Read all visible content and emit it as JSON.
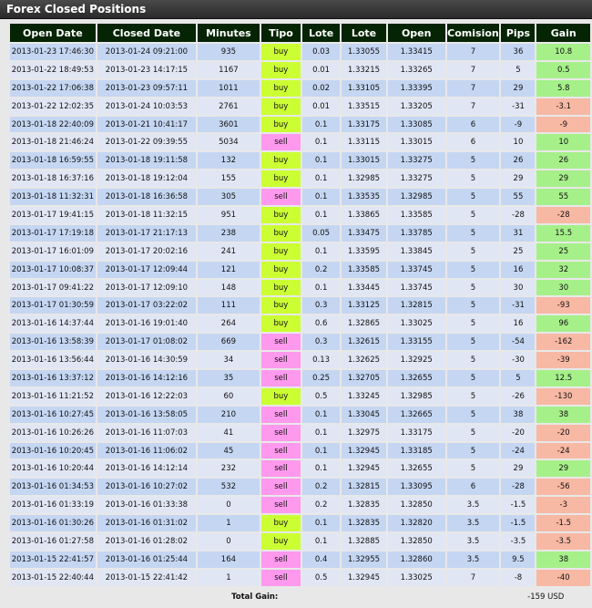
{
  "window": {
    "title": "Forex Closed Positions"
  },
  "columns": [
    "Open Date",
    "Closed Date",
    "Minutes",
    "Tipo",
    "Lote",
    "Lote",
    "Open",
    "Comision",
    "Pips",
    "Gain"
  ],
  "rows": [
    {
      "open_date": "2013-01-23 17:46:30",
      "closed_date": "2013-01-24 09:21:00",
      "minutes": "935",
      "tipo": "buy",
      "lote": "0.03",
      "lote2": "1.33055",
      "open": "1.33415",
      "comision": "7",
      "pips": "36",
      "gain": "10.8"
    },
    {
      "open_date": "2013-01-22 18:49:53",
      "closed_date": "2013-01-23 14:17:15",
      "minutes": "1167",
      "tipo": "buy",
      "lote": "0.01",
      "lote2": "1.33215",
      "open": "1.33265",
      "comision": "7",
      "pips": "5",
      "gain": "0.5"
    },
    {
      "open_date": "2013-01-22 17:06:38",
      "closed_date": "2013-01-23 09:57:11",
      "minutes": "1011",
      "tipo": "buy",
      "lote": "0.02",
      "lote2": "1.33105",
      "open": "1.33395",
      "comision": "7",
      "pips": "29",
      "gain": "5.8"
    },
    {
      "open_date": "2013-01-22 12:02:35",
      "closed_date": "2013-01-24 10:03:53",
      "minutes": "2761",
      "tipo": "buy",
      "lote": "0.01",
      "lote2": "1.33515",
      "open": "1.33205",
      "comision": "7",
      "pips": "-31",
      "gain": "-3.1"
    },
    {
      "open_date": "2013-01-18 22:40:09",
      "closed_date": "2013-01-21 10:41:17",
      "minutes": "3601",
      "tipo": "buy",
      "lote": "0.1",
      "lote2": "1.33175",
      "open": "1.33085",
      "comision": "6",
      "pips": "-9",
      "gain": "-9"
    },
    {
      "open_date": "2013-01-18 21:46:24",
      "closed_date": "2013-01-22 09:39:55",
      "minutes": "5034",
      "tipo": "sell",
      "lote": "0.1",
      "lote2": "1.33115",
      "open": "1.33015",
      "comision": "6",
      "pips": "10",
      "gain": "10"
    },
    {
      "open_date": "2013-01-18 16:59:55",
      "closed_date": "2013-01-18 19:11:58",
      "minutes": "132",
      "tipo": "buy",
      "lote": "0.1",
      "lote2": "1.33015",
      "open": "1.33275",
      "comision": "5",
      "pips": "26",
      "gain": "26"
    },
    {
      "open_date": "2013-01-18 16:37:16",
      "closed_date": "2013-01-18 19:12:04",
      "minutes": "155",
      "tipo": "buy",
      "lote": "0.1",
      "lote2": "1.32985",
      "open": "1.33275",
      "comision": "5",
      "pips": "29",
      "gain": "29"
    },
    {
      "open_date": "2013-01-18 11:32:31",
      "closed_date": "2013-01-18 16:36:58",
      "minutes": "305",
      "tipo": "sell",
      "lote": "0.1",
      "lote2": "1.33535",
      "open": "1.32985",
      "comision": "5",
      "pips": "55",
      "gain": "55"
    },
    {
      "open_date": "2013-01-17 19:41:15",
      "closed_date": "2013-01-18 11:32:15",
      "minutes": "951",
      "tipo": "buy",
      "lote": "0.1",
      "lote2": "1.33865",
      "open": "1.33585",
      "comision": "5",
      "pips": "-28",
      "gain": "-28"
    },
    {
      "open_date": "2013-01-17 17:19:18",
      "closed_date": "2013-01-17 21:17:13",
      "minutes": "238",
      "tipo": "buy",
      "lote": "0.05",
      "lote2": "1.33475",
      "open": "1.33785",
      "comision": "5",
      "pips": "31",
      "gain": "15.5"
    },
    {
      "open_date": "2013-01-17 16:01:09",
      "closed_date": "2013-01-17 20:02:16",
      "minutes": "241",
      "tipo": "buy",
      "lote": "0.1",
      "lote2": "1.33595",
      "open": "1.33845",
      "comision": "5",
      "pips": "25",
      "gain": "25"
    },
    {
      "open_date": "2013-01-17 10:08:37",
      "closed_date": "2013-01-17 12:09:44",
      "minutes": "121",
      "tipo": "buy",
      "lote": "0.2",
      "lote2": "1.33585",
      "open": "1.33745",
      "comision": "5",
      "pips": "16",
      "gain": "32"
    },
    {
      "open_date": "2013-01-17 09:41:22",
      "closed_date": "2013-01-17 12:09:10",
      "minutes": "148",
      "tipo": "buy",
      "lote": "0.1",
      "lote2": "1.33445",
      "open": "1.33745",
      "comision": "5",
      "pips": "30",
      "gain": "30"
    },
    {
      "open_date": "2013-01-17 01:30:59",
      "closed_date": "2013-01-17 03:22:02",
      "minutes": "111",
      "tipo": "buy",
      "lote": "0.3",
      "lote2": "1.33125",
      "open": "1.32815",
      "comision": "5",
      "pips": "-31",
      "gain": "-93"
    },
    {
      "open_date": "2013-01-16 14:37:44",
      "closed_date": "2013-01-16 19:01:40",
      "minutes": "264",
      "tipo": "buy",
      "lote": "0.6",
      "lote2": "1.32865",
      "open": "1.33025",
      "comision": "5",
      "pips": "16",
      "gain": "96"
    },
    {
      "open_date": "2013-01-16 13:58:39",
      "closed_date": "2013-01-17 01:08:02",
      "minutes": "669",
      "tipo": "sell",
      "lote": "0.3",
      "lote2": "1.32615",
      "open": "1.33155",
      "comision": "5",
      "pips": "-54",
      "gain": "-162"
    },
    {
      "open_date": "2013-01-16 13:56:44",
      "closed_date": "2013-01-16 14:30:59",
      "minutes": "34",
      "tipo": "sell",
      "lote": "0.13",
      "lote2": "1.32625",
      "open": "1.32925",
      "comision": "5",
      "pips": "-30",
      "gain": "-39"
    },
    {
      "open_date": "2013-01-16 13:37:12",
      "closed_date": "2013-01-16 14:12:16",
      "minutes": "35",
      "tipo": "sell",
      "lote": "0.25",
      "lote2": "1.32705",
      "open": "1.32655",
      "comision": "5",
      "pips": "5",
      "gain": "12.5"
    },
    {
      "open_date": "2013-01-16 11:21:52",
      "closed_date": "2013-01-16 12:22:03",
      "minutes": "60",
      "tipo": "buy",
      "lote": "0.5",
      "lote2": "1.33245",
      "open": "1.32985",
      "comision": "5",
      "pips": "-26",
      "gain": "-130"
    },
    {
      "open_date": "2013-01-16 10:27:45",
      "closed_date": "2013-01-16 13:58:05",
      "minutes": "210",
      "tipo": "sell",
      "lote": "0.1",
      "lote2": "1.33045",
      "open": "1.32665",
      "comision": "5",
      "pips": "38",
      "gain": "38"
    },
    {
      "open_date": "2013-01-16 10:26:26",
      "closed_date": "2013-01-16 11:07:03",
      "minutes": "41",
      "tipo": "sell",
      "lote": "0.1",
      "lote2": "1.32975",
      "open": "1.33175",
      "comision": "5",
      "pips": "-20",
      "gain": "-20"
    },
    {
      "open_date": "2013-01-16 10:20:45",
      "closed_date": "2013-01-16 11:06:02",
      "minutes": "45",
      "tipo": "sell",
      "lote": "0.1",
      "lote2": "1.32945",
      "open": "1.33185",
      "comision": "5",
      "pips": "-24",
      "gain": "-24"
    },
    {
      "open_date": "2013-01-16 10:20:44",
      "closed_date": "2013-01-16 14:12:14",
      "minutes": "232",
      "tipo": "sell",
      "lote": "0.1",
      "lote2": "1.32945",
      "open": "1.32655",
      "comision": "5",
      "pips": "29",
      "gain": "29"
    },
    {
      "open_date": "2013-01-16 01:34:53",
      "closed_date": "2013-01-16 10:27:02",
      "minutes": "532",
      "tipo": "sell",
      "lote": "0.2",
      "lote2": "1.32815",
      "open": "1.33095",
      "comision": "6",
      "pips": "-28",
      "gain": "-56"
    },
    {
      "open_date": "2013-01-16 01:33:19",
      "closed_date": "2013-01-16 01:33:38",
      "minutes": "0",
      "tipo": "sell",
      "lote": "0.2",
      "lote2": "1.32835",
      "open": "1.32850",
      "comision": "3.5",
      "pips": "-1.5",
      "gain": "-3"
    },
    {
      "open_date": "2013-01-16 01:30:26",
      "closed_date": "2013-01-16 01:31:02",
      "minutes": "1",
      "tipo": "buy",
      "lote": "0.1",
      "lote2": "1.32835",
      "open": "1.32820",
      "comision": "3.5",
      "pips": "-1.5",
      "gain": "-1.5"
    },
    {
      "open_date": "2013-01-16 01:27:58",
      "closed_date": "2013-01-16 01:28:02",
      "minutes": "0",
      "tipo": "buy",
      "lote": "0.1",
      "lote2": "1.32885",
      "open": "1.32850",
      "comision": "3.5",
      "pips": "-3.5",
      "gain": "-3.5"
    },
    {
      "open_date": "2013-01-15 22:41:57",
      "closed_date": "2013-01-16 01:25:44",
      "minutes": "164",
      "tipo": "sell",
      "lote": "0.4",
      "lote2": "1.32955",
      "open": "1.32860",
      "comision": "3.5",
      "pips": "9.5",
      "gain": "38"
    },
    {
      "open_date": "2013-01-15 22:40:44",
      "closed_date": "2013-01-15 22:41:42",
      "minutes": "1",
      "tipo": "sell",
      "lote": "0.5",
      "lote2": "1.32945",
      "open": "1.33025",
      "comision": "7",
      "pips": "-8",
      "gain": "-40"
    }
  ],
  "footer": {
    "total_label": "Total Gain:",
    "total_value": "-159 USD"
  },
  "colors": {
    "header_bg": "#042403",
    "row_even": "#c5d6f2",
    "row_odd": "#e1e6f4",
    "buy": "#ccff33",
    "sell": "#ff99ee",
    "gain_positive": "#a6f08a",
    "gain_negative": "#f7b8a4"
  }
}
